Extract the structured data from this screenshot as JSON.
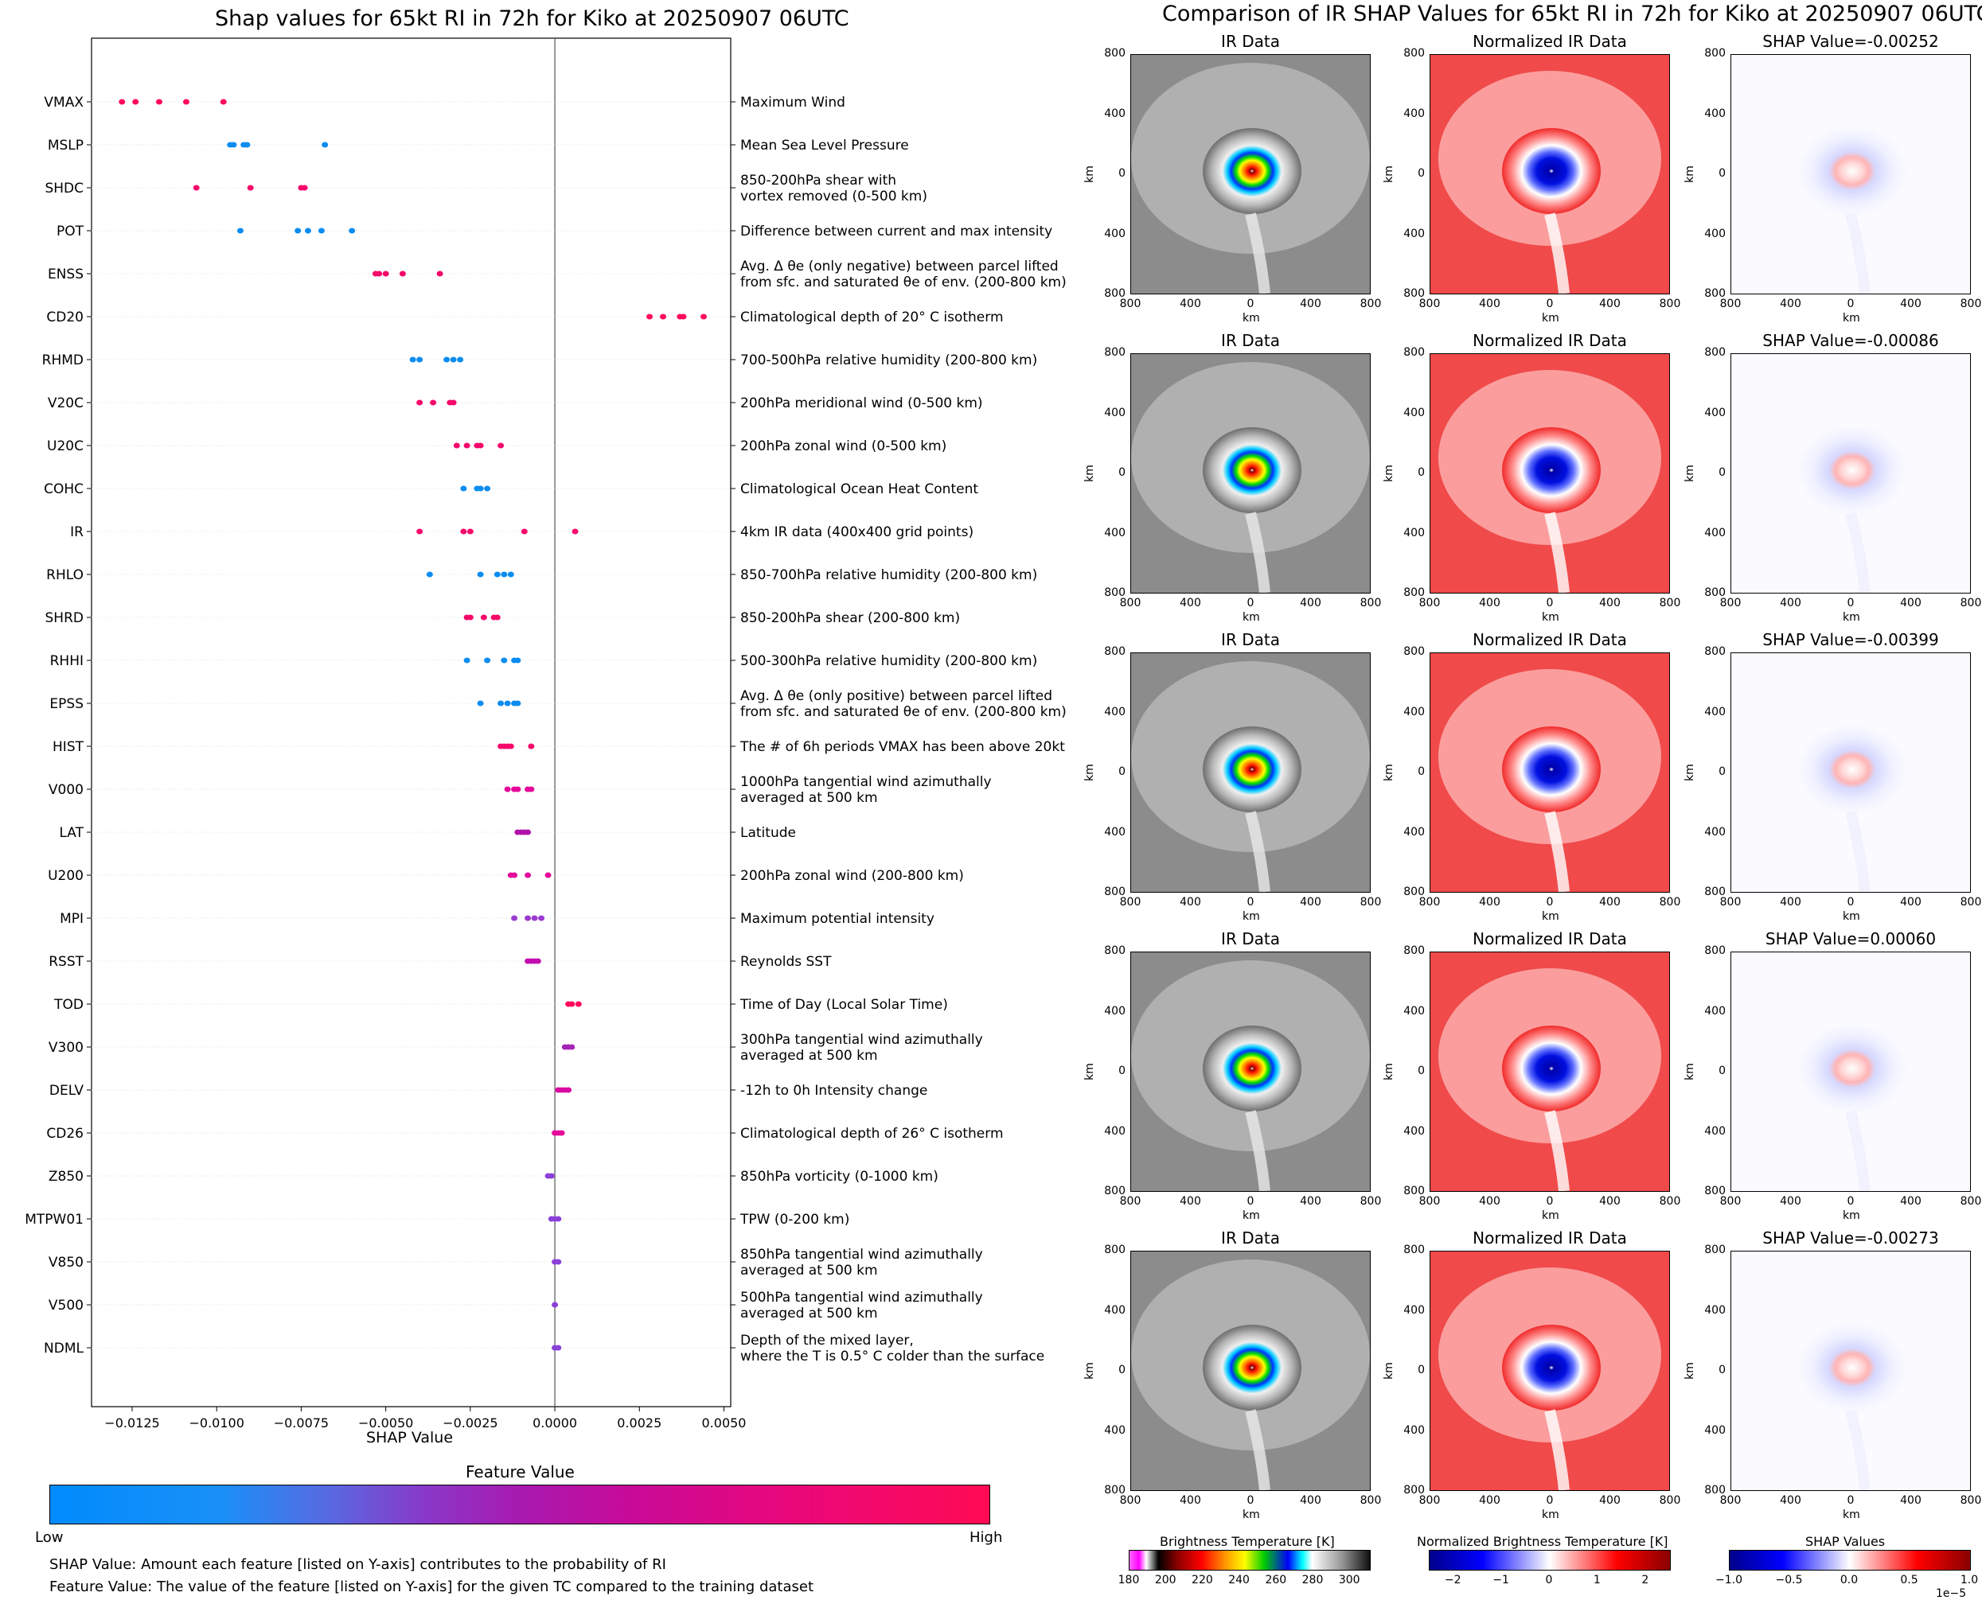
{
  "left": {
    "title": "Shap values for 65kt RI in 72h for Kiko at 20250907 06UTC",
    "xlabel": "SHAP Value",
    "colorbar": {
      "title": "Feature Value",
      "low": "Low",
      "high": "High"
    },
    "notes": [
      "SHAP Value: Amount each feature [listed on Y-axis] contributes to the probability of RI",
      "Feature Value: The value of the feature [listed on Y-axis] for the given TC compared to the training dataset"
    ]
  },
  "right": {
    "title": "Comparison of IR SHAP Values for 65kt RI in 72h for Kiko at 20250907 06UTC",
    "col_titles": [
      "IR Data",
      "Normalized IR Data"
    ],
    "shap_titles": [
      "SHAP Value=-0.00252",
      "SHAP Value=-0.00086",
      "SHAP Value=-0.00399",
      "SHAP Value=0.00060",
      "SHAP Value=-0.00273"
    ],
    "ticks": [
      "800",
      "400",
      "0",
      "400",
      "800"
    ],
    "axis_unit": "km",
    "colorbars": [
      {
        "title": "Brightness Temperature [K]",
        "ticks": [
          "180",
          "200",
          "220",
          "240",
          "260",
          "280",
          "300"
        ]
      },
      {
        "title": "Normalized Brightness Temperature [K]",
        "ticks": [
          "−2",
          "−1",
          "0",
          "1",
          "2"
        ]
      },
      {
        "title": "SHAP Values",
        "ticks": [
          "−1.0",
          "−0.5",
          "0.0",
          "0.5",
          "1.0"
        ],
        "exponent": "1e−5"
      }
    ]
  },
  "chart_data": {
    "type": "scatter",
    "title": "Shap values for 65kt RI in 72h for Kiko at 20250907 06UTC",
    "xlabel": "SHAP Value",
    "xlim": [
      -0.0137,
      0.0052
    ],
    "xticks": [
      -0.0125,
      -0.01,
      -0.0075,
      -0.005,
      -0.0025,
      0.0,
      0.0025,
      0.005
    ],
    "xtick_labels": [
      "−0.0125",
      "−0.0100",
      "−0.0075",
      "−0.0050",
      "−0.0025",
      "0.0000",
      "0.0025",
      "0.0050"
    ],
    "features": [
      {
        "name": "VMAX",
        "desc": "Maximum Wind",
        "color": "#ff0a5a",
        "shap": [
          -0.0128,
          -0.0124,
          -0.0117,
          -0.0109,
          -0.0098
        ]
      },
      {
        "name": "MSLP",
        "desc": "Mean Sea Level Pressure",
        "color": "#0a8cf0",
        "shap": [
          -0.0096,
          -0.0095,
          -0.0092,
          -0.0091,
          -0.0068
        ]
      },
      {
        "name": "SHDC",
        "desc": "850-200hPa shear with\nvortex removed (0-500 km)",
        "color": "#f5086a",
        "shap": [
          -0.0106,
          -0.009,
          -0.0075,
          -0.0074
        ]
      },
      {
        "name": "POT",
        "desc": "Difference between current and max intensity",
        "color": "#0a8cf0",
        "shap": [
          -0.0093,
          -0.0076,
          -0.0073,
          -0.0069,
          -0.006
        ]
      },
      {
        "name": "ENSS",
        "desc": "Avg. Δ θe (only negative) between parcel lifted\nfrom sfc. and saturated θe of env. (200-800 km)",
        "color": "#f5086a",
        "shap": [
          -0.0053,
          -0.0052,
          -0.005,
          -0.0045,
          -0.0034
        ]
      },
      {
        "name": "CD20",
        "desc": "Climatological depth of 20° C isotherm",
        "color": "#ff0a5a",
        "shap": [
          0.0028,
          0.0032,
          0.0037,
          0.0038,
          0.0044
        ]
      },
      {
        "name": "RHMD",
        "desc": "700-500hPa relative humidity (200-800 km)",
        "color": "#0a8cf0",
        "shap": [
          -0.0042,
          -0.004,
          -0.0032,
          -0.003,
          -0.0028
        ]
      },
      {
        "name": "V20C",
        "desc": "200hPa meridional wind (0-500 km)",
        "color": "#f5086a",
        "shap": [
          -0.004,
          -0.0036,
          -0.0031,
          -0.003
        ]
      },
      {
        "name": "U20C",
        "desc": "200hPa zonal wind (0-500 km)",
        "color": "#f5086a",
        "shap": [
          -0.0029,
          -0.0026,
          -0.0023,
          -0.0022,
          -0.0016
        ]
      },
      {
        "name": "COHC",
        "desc": "Climatological Ocean Heat Content",
        "color": "#0a8cf0",
        "shap": [
          -0.0027,
          -0.0023,
          -0.0022,
          -0.002
        ]
      },
      {
        "name": "IR",
        "desc": "4km IR data (400x400 grid points)",
        "color": "#f5086a",
        "shap": [
          -0.004,
          -0.0027,
          -0.0025,
          -0.0009,
          0.0006
        ]
      },
      {
        "name": "RHLO",
        "desc": "850-700hPa relative humidity (200-800 km)",
        "color": "#0a8cf0",
        "shap": [
          -0.0037,
          -0.0022,
          -0.0017,
          -0.0015,
          -0.0013
        ]
      },
      {
        "name": "SHRD",
        "desc": "850-200hPa shear (200-800 km)",
        "color": "#f5086a",
        "shap": [
          -0.0026,
          -0.0025,
          -0.0021,
          -0.0018,
          -0.0017
        ]
      },
      {
        "name": "RHHI",
        "desc": "500-300hPa relative humidity (200-800 km)",
        "color": "#0a8cf0",
        "shap": [
          -0.0026,
          -0.002,
          -0.0015,
          -0.0012,
          -0.0011
        ]
      },
      {
        "name": "EPSS",
        "desc": "Avg. Δ θe (only positive) between parcel lifted\nfrom sfc. and saturated θe of env. (200-800 km)",
        "color": "#0a8cf0",
        "shap": [
          -0.0022,
          -0.0016,
          -0.0014,
          -0.0012,
          -0.0011
        ]
      },
      {
        "name": "HIST",
        "desc": "The # of 6h periods VMAX has been above 20kt",
        "color": "#f5086a",
        "shap": [
          -0.0016,
          -0.0015,
          -0.0014,
          -0.0013,
          -0.0007
        ]
      },
      {
        "name": "V000",
        "desc": "1000hPa tangential wind azimuthally\naveraged at 500 km",
        "color": "#e5089a",
        "shap": [
          -0.0014,
          -0.0012,
          -0.0011,
          -0.0008,
          -0.0007
        ]
      },
      {
        "name": "LAT",
        "desc": "Latitude",
        "color": "#b012a8",
        "shap": [
          -0.0011,
          -0.001,
          -0.0009,
          -0.0008
        ]
      },
      {
        "name": "U200",
        "desc": "200hPa zonal wind (200-800 km)",
        "color": "#e5089a",
        "shap": [
          -0.0013,
          -0.0012,
          -0.0008,
          -0.0002
        ]
      },
      {
        "name": "MPI",
        "desc": "Maximum potential intensity",
        "color": "#9a3ad0",
        "shap": [
          -0.0012,
          -0.0008,
          -0.0006,
          -0.0004
        ]
      },
      {
        "name": "RSST",
        "desc": "Reynolds SST",
        "color": "#c20cae",
        "shap": [
          -0.0008,
          -0.0007,
          -0.0006,
          -0.0005
        ]
      },
      {
        "name": "TOD",
        "desc": "Time of Day (Local Solar Time)",
        "color": "#ff0a5a",
        "shap": [
          0.0004,
          0.0005,
          0.0007
        ]
      },
      {
        "name": "V300",
        "desc": "300hPa tangential wind azimuthally\naveraged at 500 km",
        "color": "#a425b5",
        "shap": [
          0.0003,
          0.0004,
          0.0005
        ]
      },
      {
        "name": "DELV",
        "desc": "-12h to 0h Intensity change",
        "color": "#d80aa2",
        "shap": [
          0.0001,
          0.0002,
          0.0003,
          0.0004
        ]
      },
      {
        "name": "CD26",
        "desc": "Climatological depth of 26° C isotherm",
        "color": "#e5089a",
        "shap": [
          0.0,
          0.0001,
          0.0002
        ]
      },
      {
        "name": "Z850",
        "desc": "850hPa vorticity (0-1000 km)",
        "color": "#8a40d8",
        "shap": [
          -0.0002,
          -0.0001
        ]
      },
      {
        "name": "MTPW01",
        "desc": "TPW (0-200 km)",
        "color": "#8a40d8",
        "shap": [
          -0.0001,
          0.0,
          0.0001
        ]
      },
      {
        "name": "V850",
        "desc": "850hPa tangential wind azimuthally\naveraged at 500 km",
        "color": "#8a40d8",
        "shap": [
          0.0,
          0.0001
        ]
      },
      {
        "name": "V500",
        "desc": "500hPa tangential wind azimuthally\naveraged at 500 km",
        "color": "#8a40d8",
        "shap": [
          0.0
        ]
      },
      {
        "name": "NDML",
        "desc": "Depth of the mixed layer,\nwhere the T is 0.5° C colder than the surface",
        "color": "#8a40d8",
        "shap": [
          0.0,
          0.0001
        ]
      }
    ]
  }
}
